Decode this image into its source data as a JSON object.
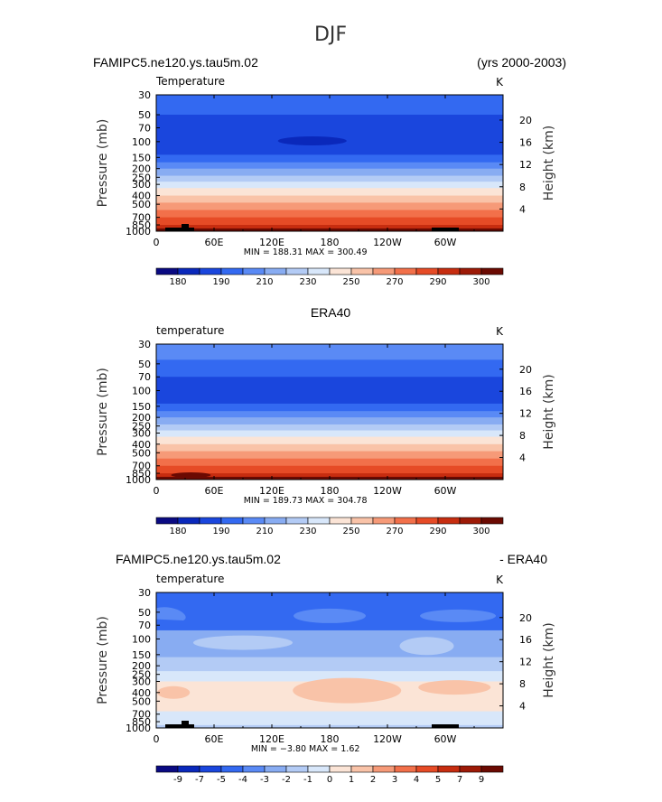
{
  "figure": {
    "title": "DJF",
    "case_name": "FAMIPC5.ne120.ys.tau5m.02",
    "years": "(yrs 2000-2003)"
  },
  "chart_data": [
    {
      "type": "heatmap",
      "panel_title": "",
      "variable": "Temperature",
      "units": "K",
      "xlabel": "",
      "ylabel": "Pressure  (mb)",
      "y2label": "Height  (km)",
      "x_ticks": [
        "0",
        "60E",
        "120E",
        "180",
        "120W",
        "60W"
      ],
      "y_ticks": [
        "30",
        "50",
        "70",
        "100",
        "150",
        "200",
        "250",
        "300",
        "400",
        "500",
        "700",
        "850",
        "1000"
      ],
      "y2_ticks": [
        "4",
        "8",
        "12",
        "16",
        "20"
      ],
      "stats": "MIN = 188.31   MAX = 300.49",
      "min": 188.31,
      "max": 300.49,
      "colorbar_labels": [
        "180",
        "190",
        "210",
        "230",
        "250",
        "270",
        "290",
        "300"
      ],
      "colorbar_colors": [
        "#0a0a82",
        "#0a28bb",
        "#1a46dd",
        "#3369f1",
        "#5a8af5",
        "#88acf2",
        "#b3cbf5",
        "#d8e7fa",
        "#fbe4d6",
        "#f9c3a8",
        "#f69a78",
        "#f2704a",
        "#e64b26",
        "#c72d10",
        "#9d1a07",
        "#6b0a02"
      ],
      "profile": [
        {
          "p": 30,
          "bin": 3
        },
        {
          "p": 50,
          "bin": 2
        },
        {
          "p": 100,
          "bin": 2
        },
        {
          "p": 140,
          "bin": 3
        },
        {
          "p": 170,
          "bin": 4
        },
        {
          "p": 200,
          "bin": 5
        },
        {
          "p": 240,
          "bin": 6
        },
        {
          "p": 280,
          "bin": 7
        },
        {
          "p": 330,
          "bin": 8
        },
        {
          "p": 400,
          "bin": 9
        },
        {
          "p": 480,
          "bin": 10
        },
        {
          "p": 580,
          "bin": 11
        },
        {
          "p": 700,
          "bin": 12
        },
        {
          "p": 850,
          "bin": 13
        },
        {
          "p": 930,
          "bin": 14
        },
        {
          "p": 1000,
          "bin": 14
        }
      ]
    },
    {
      "type": "heatmap",
      "panel_title": "ERA40",
      "variable": "temperature",
      "units": "K",
      "xlabel": "",
      "ylabel": "Pressure  (mb)",
      "y2label": "Height  (km)",
      "x_ticks": [
        "0",
        "60E",
        "120E",
        "180",
        "120W",
        "60W"
      ],
      "y_ticks": [
        "30",
        "50",
        "70",
        "100",
        "150",
        "200",
        "250",
        "300",
        "400",
        "500",
        "700",
        "850",
        "1000"
      ],
      "y2_ticks": [
        "4",
        "8",
        "12",
        "16",
        "20"
      ],
      "stats": "MIN = 189.73   MAX = 304.78",
      "min": 189.73,
      "max": 304.78,
      "colorbar_labels": [
        "180",
        "190",
        "210",
        "230",
        "250",
        "270",
        "290",
        "300"
      ],
      "colorbar_colors": [
        "#0a0a82",
        "#0a28bb",
        "#1a46dd",
        "#3369f1",
        "#5a8af5",
        "#88acf2",
        "#b3cbf5",
        "#d8e7fa",
        "#fbe4d6",
        "#f9c3a8",
        "#f69a78",
        "#f2704a",
        "#e64b26",
        "#c72d10",
        "#9d1a07",
        "#6b0a02"
      ],
      "profile": [
        {
          "p": 30,
          "bin": 4
        },
        {
          "p": 45,
          "bin": 3
        },
        {
          "p": 70,
          "bin": 2
        },
        {
          "p": 140,
          "bin": 3
        },
        {
          "p": 170,
          "bin": 4
        },
        {
          "p": 200,
          "bin": 5
        },
        {
          "p": 240,
          "bin": 6
        },
        {
          "p": 280,
          "bin": 7
        },
        {
          "p": 330,
          "bin": 8
        },
        {
          "p": 400,
          "bin": 9
        },
        {
          "p": 480,
          "bin": 10
        },
        {
          "p": 580,
          "bin": 11
        },
        {
          "p": 700,
          "bin": 12
        },
        {
          "p": 850,
          "bin": 13
        },
        {
          "p": 930,
          "bin": 14
        },
        {
          "p": 1000,
          "bin": 15
        }
      ]
    },
    {
      "type": "heatmap",
      "panel_title": "FAMIPC5.ne120.ys.tau5m.02",
      "panel_title_right": "- ERA40",
      "variable": "temperature",
      "units": "K",
      "xlabel": "",
      "ylabel": "Pressure  (mb)",
      "y2label": "Height  (km)",
      "x_ticks": [
        "0",
        "60E",
        "120E",
        "180",
        "120W",
        "60W"
      ],
      "y_ticks": [
        "30",
        "50",
        "70",
        "100",
        "150",
        "200",
        "250",
        "300",
        "400",
        "500",
        "700",
        "850",
        "1000"
      ],
      "y2_ticks": [
        "4",
        "8",
        "12",
        "16",
        "20"
      ],
      "stats": "MIN =  −3.80   MAX =    1.62",
      "min": -3.8,
      "max": 1.62,
      "colorbar_labels": [
        "-9",
        "-7",
        "-5",
        "-4",
        "-3",
        "-2",
        "-1",
        "0",
        "1",
        "2",
        "3",
        "4",
        "5",
        "7",
        "9"
      ],
      "colorbar_colors": [
        "#0a0a82",
        "#0a28bb",
        "#1a46dd",
        "#3369f1",
        "#5a8af5",
        "#88acf2",
        "#b3cbf5",
        "#d8e7fa",
        "#fbe4d6",
        "#f9c3a8",
        "#f69a78",
        "#f2704a",
        "#e64b26",
        "#c72d10",
        "#9d1a07",
        "#6b0a02"
      ],
      "profile": [
        {
          "p": 30,
          "bin": 3
        },
        {
          "p": 80,
          "bin": 5
        },
        {
          "p": 160,
          "bin": 6
        },
        {
          "p": 230,
          "bin": 7
        },
        {
          "p": 300,
          "bin": 8
        },
        {
          "p": 650,
          "bin": 7
        },
        {
          "p": 1000,
          "bin": 7
        }
      ]
    }
  ]
}
